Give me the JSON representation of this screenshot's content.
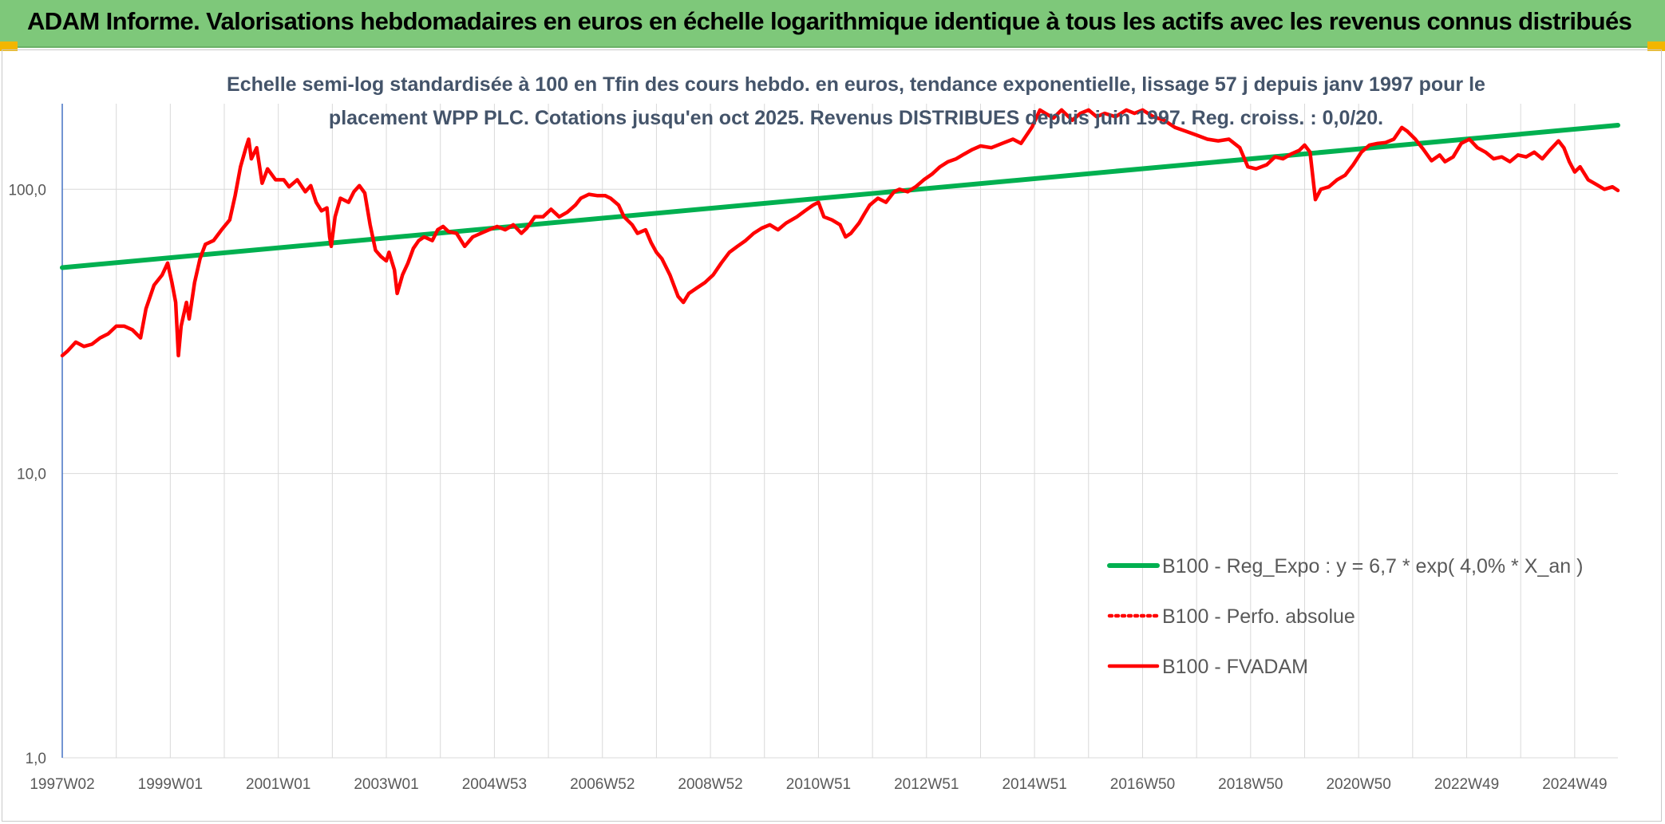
{
  "banner": {
    "title": "ADAM Informe. Valorisations hebdomadaires en euros en échelle logarithmique identique à tous les actifs avec les revenus connus distribués",
    "background": "#7ec87a",
    "corner_color": "#f2b600"
  },
  "chart_data": {
    "type": "line",
    "title": "",
    "subtitle_lines": [
      "Echelle semi-log standardisée à 100 en Tfin des cours hebdo. en euros, tendance exponentielle, lissage 57 j depuis janv 1997 pour le",
      "placement WPP PLC. Cotations jusqu'en oct 2025. Revenus DISTRIBUES depuis juin 1997. Reg. croiss. : 0,0/20."
    ],
    "xlabel": "",
    "ylabel": "",
    "y_scale": "log",
    "ylim": [
      1,
      200
    ],
    "y_ticks": [
      {
        "value": 1,
        "label": "1,0"
      },
      {
        "value": 10,
        "label": "10,0"
      },
      {
        "value": 100,
        "label": "100,0"
      }
    ],
    "x_range": [
      1997.0,
      2025.8
    ],
    "x_ticks": [
      {
        "value": 1997.0,
        "label": "1997W02"
      },
      {
        "value": 1999.0,
        "label": "1999W01"
      },
      {
        "value": 2001.0,
        "label": "2001W01"
      },
      {
        "value": 2003.0,
        "label": "2003W01"
      },
      {
        "value": 2005.0,
        "label": "2004W53"
      },
      {
        "value": 2007.0,
        "label": "2006W52"
      },
      {
        "value": 2009.0,
        "label": "2008W52"
      },
      {
        "value": 2011.0,
        "label": "2010W51"
      },
      {
        "value": 2013.0,
        "label": "2012W51"
      },
      {
        "value": 2015.0,
        "label": "2014W51"
      },
      {
        "value": 2017.0,
        "label": "2016W50"
      },
      {
        "value": 2019.0,
        "label": "2018W50"
      },
      {
        "value": 2021.0,
        "label": "2020W50"
      },
      {
        "value": 2023.0,
        "label": "2022W49"
      },
      {
        "value": 2025.0,
        "label": "2024W49"
      }
    ],
    "grid": true,
    "legend_position": "bottom-right",
    "series": [
      {
        "name": "B100 - Reg_Expo : y = 6,7 * exp( 4,0% *  X_an )",
        "color": "#00b050",
        "style": "solid",
        "points": [
          [
            1997.0,
            53
          ],
          [
            2025.8,
            168
          ]
        ]
      },
      {
        "name": "B100 - Perfo. absolue",
        "color": "#ff0000",
        "style": "dotted",
        "points": []
      },
      {
        "name": "B100 - FVADAM",
        "color": "#ff0000",
        "style": "solid",
        "points": [
          [
            1997.0,
            26
          ],
          [
            1997.1,
            27
          ],
          [
            1997.25,
            29
          ],
          [
            1997.4,
            28
          ],
          [
            1997.55,
            28.5
          ],
          [
            1997.7,
            30
          ],
          [
            1997.85,
            31
          ],
          [
            1998.0,
            33
          ],
          [
            1998.15,
            33
          ],
          [
            1998.3,
            32
          ],
          [
            1998.45,
            30
          ],
          [
            1998.55,
            38
          ],
          [
            1998.7,
            46
          ],
          [
            1998.85,
            50
          ],
          [
            1998.95,
            55
          ],
          [
            1999.03,
            47
          ],
          [
            1999.1,
            40
          ],
          [
            1999.15,
            26
          ],
          [
            1999.2,
            33
          ],
          [
            1999.3,
            40
          ],
          [
            1999.35,
            35
          ],
          [
            1999.45,
            47
          ],
          [
            1999.55,
            57
          ],
          [
            1999.65,
            64
          ],
          [
            1999.8,
            66
          ],
          [
            1999.95,
            72
          ],
          [
            2000.1,
            78
          ],
          [
            2000.2,
            95
          ],
          [
            2000.3,
            120
          ],
          [
            2000.4,
            140
          ],
          [
            2000.45,
            150
          ],
          [
            2000.5,
            128
          ],
          [
            2000.6,
            140
          ],
          [
            2000.7,
            105
          ],
          [
            2000.8,
            118
          ],
          [
            2000.95,
            108
          ],
          [
            2001.1,
            108
          ],
          [
            2001.2,
            102
          ],
          [
            2001.35,
            108
          ],
          [
            2001.5,
            98
          ],
          [
            2001.6,
            103
          ],
          [
            2001.7,
            90
          ],
          [
            2001.8,
            84
          ],
          [
            2001.9,
            86
          ],
          [
            2001.95,
            68
          ],
          [
            2001.98,
            63
          ],
          [
            2002.05,
            80
          ],
          [
            2002.15,
            93
          ],
          [
            2002.3,
            90
          ],
          [
            2002.4,
            98
          ],
          [
            2002.5,
            103
          ],
          [
            2002.6,
            97
          ],
          [
            2002.7,
            75
          ],
          [
            2002.8,
            61
          ],
          [
            2002.9,
            58
          ],
          [
            2003.0,
            56
          ],
          [
            2003.05,
            60
          ],
          [
            2003.15,
            52
          ],
          [
            2003.2,
            43
          ],
          [
            2003.3,
            50
          ],
          [
            2003.4,
            55
          ],
          [
            2003.5,
            62
          ],
          [
            2003.6,
            66
          ],
          [
            2003.7,
            68
          ],
          [
            2003.85,
            66
          ],
          [
            2003.95,
            72
          ],
          [
            2004.05,
            74
          ],
          [
            2004.15,
            71
          ],
          [
            2004.3,
            70
          ],
          [
            2004.45,
            63
          ],
          [
            2004.6,
            68
          ],
          [
            2004.75,
            70
          ],
          [
            2004.9,
            72
          ],
          [
            2005.05,
            74
          ],
          [
            2005.2,
            72
          ],
          [
            2005.35,
            75
          ],
          [
            2005.5,
            70
          ],
          [
            2005.6,
            73
          ],
          [
            2005.75,
            80
          ],
          [
            2005.9,
            80
          ],
          [
            2006.05,
            85
          ],
          [
            2006.2,
            80
          ],
          [
            2006.35,
            83
          ],
          [
            2006.5,
            88
          ],
          [
            2006.6,
            93
          ],
          [
            2006.75,
            96
          ],
          [
            2006.9,
            95
          ],
          [
            2007.05,
            95
          ],
          [
            2007.15,
            93
          ],
          [
            2007.3,
            88
          ],
          [
            2007.4,
            80
          ],
          [
            2007.55,
            75
          ],
          [
            2007.65,
            70
          ],
          [
            2007.8,
            72
          ],
          [
            2007.9,
            65
          ],
          [
            2008.0,
            60
          ],
          [
            2008.1,
            57
          ],
          [
            2008.25,
            50
          ],
          [
            2008.4,
            42
          ],
          [
            2008.5,
            40
          ],
          [
            2008.6,
            43
          ],
          [
            2008.75,
            45
          ],
          [
            2008.9,
            47
          ],
          [
            2009.05,
            50
          ],
          [
            2009.2,
            55
          ],
          [
            2009.35,
            60
          ],
          [
            2009.5,
            63
          ],
          [
            2009.65,
            66
          ],
          [
            2009.8,
            70
          ],
          [
            2009.95,
            73
          ],
          [
            2010.1,
            75
          ],
          [
            2010.25,
            72
          ],
          [
            2010.4,
            76
          ],
          [
            2010.6,
            80
          ],
          [
            2010.75,
            84
          ],
          [
            2010.9,
            88
          ],
          [
            2011.0,
            90
          ],
          [
            2011.1,
            80
          ],
          [
            2011.25,
            78
          ],
          [
            2011.4,
            75
          ],
          [
            2011.5,
            68
          ],
          [
            2011.6,
            70
          ],
          [
            2011.75,
            76
          ],
          [
            2011.85,
            82
          ],
          [
            2011.95,
            88
          ],
          [
            2012.1,
            93
          ],
          [
            2012.25,
            90
          ],
          [
            2012.4,
            98
          ],
          [
            2012.5,
            100
          ],
          [
            2012.65,
            98
          ],
          [
            2012.8,
            102
          ],
          [
            2012.95,
            108
          ],
          [
            2013.1,
            113
          ],
          [
            2013.25,
            120
          ],
          [
            2013.4,
            125
          ],
          [
            2013.55,
            128
          ],
          [
            2013.7,
            133
          ],
          [
            2013.85,
            138
          ],
          [
            2014.0,
            142
          ],
          [
            2014.2,
            140
          ],
          [
            2014.4,
            145
          ],
          [
            2014.6,
            150
          ],
          [
            2014.75,
            145
          ],
          [
            2014.95,
            165
          ],
          [
            2015.1,
            190
          ],
          [
            2015.2,
            185
          ],
          [
            2015.35,
            178
          ],
          [
            2015.5,
            190
          ],
          [
            2015.7,
            175
          ],
          [
            2015.85,
            185
          ],
          [
            2016.0,
            190
          ],
          [
            2016.15,
            180
          ],
          [
            2016.3,
            185
          ],
          [
            2016.5,
            180
          ],
          [
            2016.7,
            190
          ],
          [
            2016.85,
            185
          ],
          [
            2017.0,
            190
          ],
          [
            2017.2,
            180
          ],
          [
            2017.4,
            175
          ],
          [
            2017.6,
            165
          ],
          [
            2017.8,
            160
          ],
          [
            2018.0,
            155
          ],
          [
            2018.2,
            150
          ],
          [
            2018.4,
            148
          ],
          [
            2018.6,
            150
          ],
          [
            2018.8,
            140
          ],
          [
            2018.95,
            120
          ],
          [
            2019.1,
            118
          ],
          [
            2019.3,
            122
          ],
          [
            2019.45,
            130
          ],
          [
            2019.6,
            128
          ],
          [
            2019.75,
            133
          ],
          [
            2019.9,
            137
          ],
          [
            2020.0,
            143
          ],
          [
            2020.1,
            135
          ],
          [
            2020.2,
            92
          ],
          [
            2020.3,
            100
          ],
          [
            2020.45,
            102
          ],
          [
            2020.6,
            108
          ],
          [
            2020.75,
            112
          ],
          [
            2020.9,
            122
          ],
          [
            2021.05,
            135
          ],
          [
            2021.2,
            143
          ],
          [
            2021.35,
            145
          ],
          [
            2021.5,
            146
          ],
          [
            2021.65,
            150
          ],
          [
            2021.8,
            165
          ],
          [
            2021.9,
            160
          ],
          [
            2022.05,
            150
          ],
          [
            2022.2,
            138
          ],
          [
            2022.35,
            126
          ],
          [
            2022.5,
            132
          ],
          [
            2022.6,
            125
          ],
          [
            2022.75,
            130
          ],
          [
            2022.9,
            145
          ],
          [
            2023.05,
            150
          ],
          [
            2023.2,
            140
          ],
          [
            2023.35,
            135
          ],
          [
            2023.5,
            128
          ],
          [
            2023.65,
            130
          ],
          [
            2023.8,
            125
          ],
          [
            2023.95,
            132
          ],
          [
            2024.1,
            130
          ],
          [
            2024.25,
            135
          ],
          [
            2024.4,
            128
          ],
          [
            2024.55,
            138
          ],
          [
            2024.7,
            148
          ],
          [
            2024.8,
            140
          ],
          [
            2024.9,
            125
          ],
          [
            2025.0,
            115
          ],
          [
            2025.1,
            120
          ],
          [
            2025.25,
            108
          ],
          [
            2025.4,
            104
          ],
          [
            2025.55,
            100
          ],
          [
            2025.7,
            102
          ],
          [
            2025.8,
            99
          ]
        ]
      }
    ]
  }
}
